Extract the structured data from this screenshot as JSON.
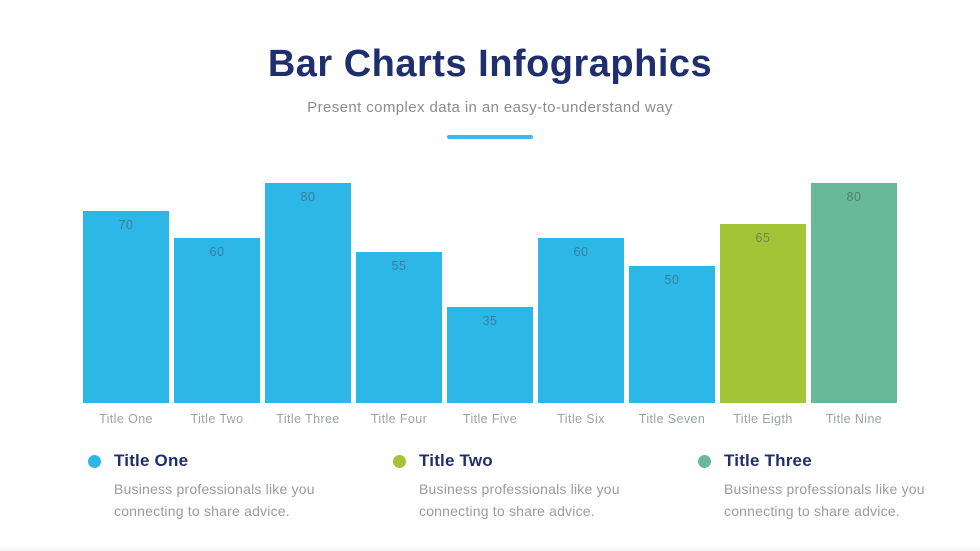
{
  "header": {
    "title": "Bar Charts Infographics",
    "subtitle": "Present complex data in an easy-to-understand way",
    "accent_color": "#3BBBE9",
    "title_color": "#1F2E6E"
  },
  "chart_data": {
    "type": "bar",
    "categories": [
      "Title One",
      "Title Two",
      "Title Three",
      "Title Four",
      "Title Five",
      "Title Six",
      "Title Seven",
      "Title Eigth",
      "Title Nine"
    ],
    "values": [
      70,
      60,
      80,
      55,
      35,
      60,
      50,
      65,
      80
    ],
    "bar_colors": [
      "#2CB7E6",
      "#2CB7E6",
      "#2CB7E6",
      "#2CB7E6",
      "#2CB7E6",
      "#2CB7E6",
      "#2CB7E6",
      "#A4C438",
      "#67B99A"
    ],
    "title": "",
    "xlabel": "",
    "ylabel": "",
    "ylim": [
      0,
      100
    ],
    "grid": false,
    "legend_position": "bottom",
    "value_labels": true
  },
  "legend": {
    "items": [
      {
        "label": "Title One",
        "color": "#2CB7E6",
        "description": "Business professionals like you connecting to share advice."
      },
      {
        "label": "Title Two",
        "color": "#A4C438",
        "description": "Business professionals like you connecting to share advice."
      },
      {
        "label": "Title Three",
        "color": "#67B99A",
        "description": "Business professionals like you connecting to share advice."
      }
    ]
  }
}
